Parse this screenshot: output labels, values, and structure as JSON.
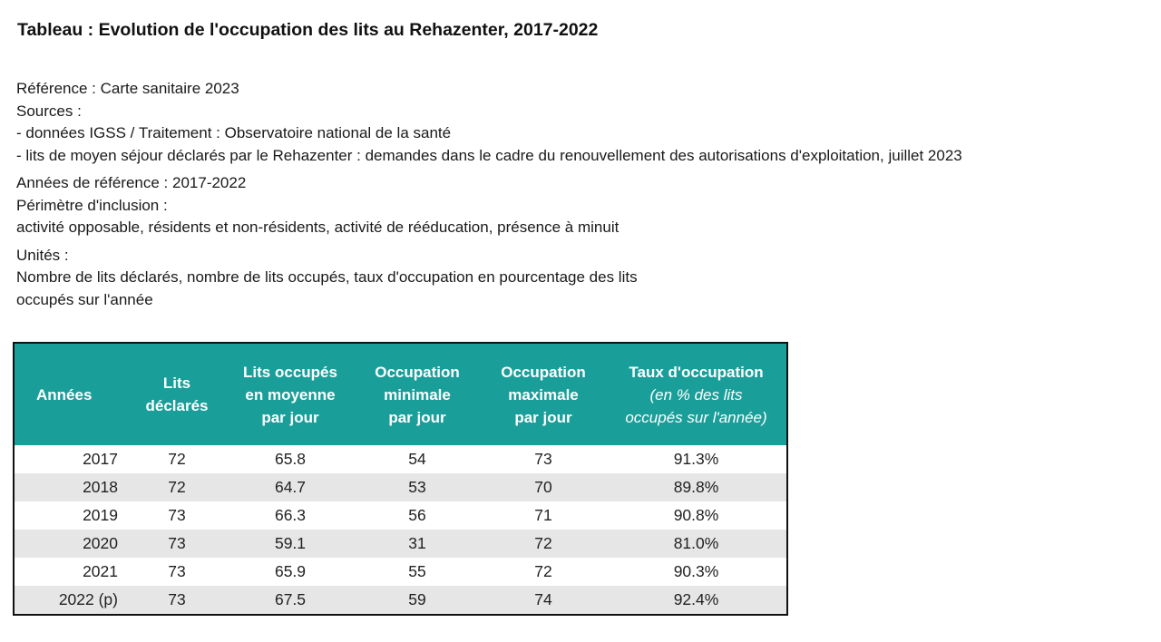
{
  "title": "Tableau : Evolution de l'occupation des lits au Rehazenter, 2017-2022",
  "meta": {
    "reference": "Référence : Carte sanitaire 2023",
    "sources_label": "Sources :",
    "source_1": "- données IGSS / Traitement : Observatoire national de la santé",
    "source_2": "- lits de moyen séjour déclarés par le Rehazenter : demandes dans le cadre du renouvellement des autorisations d'exploitation, juillet 2023",
    "years": "Années de référence : 2017-2022",
    "perimeter_label": "Périmètre d'inclusion :",
    "perimeter": "activité opposable, résidents et non-résidents, activité de rééducation, présence à minuit",
    "units_label": "Unités :",
    "units_1": "Nombre de lits déclarés, nombre de lits occupés, taux d'occupation en pourcentage des lits",
    "units_2": "occupés sur l'année"
  },
  "table": {
    "headers": {
      "years": "Années",
      "declared": [
        "Lits",
        "déclarés"
      ],
      "occupied": [
        "Lits occupés",
        "en moyenne",
        "par jour"
      ],
      "min": [
        "Occupation",
        "minimale",
        "par jour"
      ],
      "max": [
        "Occupation",
        "maximale",
        "par jour"
      ],
      "rate": "Taux d'occupation",
      "rate_sub": [
        "(en % des lits",
        "occupés sur l'année)"
      ]
    },
    "rows": [
      {
        "year": "2017",
        "declared": "72",
        "occupied": "65.8",
        "min": "54",
        "max": "73",
        "rate": "91.3%"
      },
      {
        "year": "2018",
        "declared": "72",
        "occupied": "64.7",
        "min": "53",
        "max": "70",
        "rate": "89.8%"
      },
      {
        "year": "2019",
        "declared": "73",
        "occupied": "66.3",
        "min": "56",
        "max": "71",
        "rate": "90.8%"
      },
      {
        "year": "2020",
        "declared": "73",
        "occupied": "59.1",
        "min": "31",
        "max": "72",
        "rate": "81.0%"
      },
      {
        "year": "2021",
        "declared": "73",
        "occupied": "65.9",
        "min": "55",
        "max": "72",
        "rate": "90.3%"
      },
      {
        "year": "2022 (p)",
        "declared": "73",
        "occupied": "67.5",
        "min": "59",
        "max": "74",
        "rate": "92.4%"
      }
    ]
  },
  "colors": {
    "header_bg": "#1a9e99",
    "header_text": "#ffffff",
    "stripe": "#e6e6e6"
  }
}
